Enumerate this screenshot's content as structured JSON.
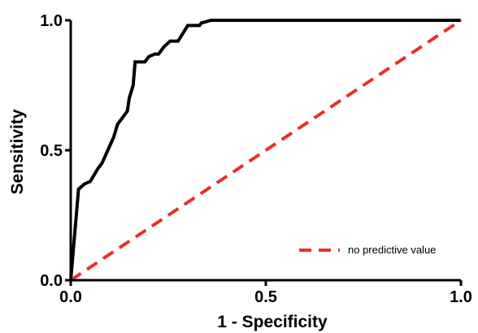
{
  "chart_data": {
    "type": "line",
    "title": "",
    "xlabel": "1 - Specificity",
    "ylabel": "Sensitivity",
    "xlim": [
      0,
      1
    ],
    "ylim": [
      0,
      1
    ],
    "x_ticks": [
      {
        "value": 0,
        "label": "0.0"
      },
      {
        "value": 0.5,
        "label": "0.5"
      },
      {
        "value": 1,
        "label": "1.0"
      }
    ],
    "y_ticks": [
      {
        "value": 0,
        "label": "0.0"
      },
      {
        "value": 0.5,
        "label": "0.5"
      },
      {
        "value": 1,
        "label": "1.0"
      }
    ],
    "grid": false,
    "legend_position": "bottom-right",
    "series": [
      {
        "name": "",
        "style": "solid",
        "color": "#000000",
        "x": [
          0,
          0.02,
          0.035,
          0.05,
          0.07,
          0.08,
          0.095,
          0.11,
          0.12,
          0.13,
          0.145,
          0.15,
          0.16,
          0.165,
          0.175,
          0.19,
          0.2,
          0.215,
          0.225,
          0.24,
          0.255,
          0.265,
          0.275,
          0.3,
          0.32,
          0.33,
          0.335,
          0.36,
          0.4,
          0.6,
          0.8,
          1.0
        ],
        "y": [
          0,
          0.35,
          0.37,
          0.38,
          0.43,
          0.45,
          0.5,
          0.55,
          0.6,
          0.62,
          0.65,
          0.7,
          0.75,
          0.84,
          0.84,
          0.84,
          0.86,
          0.87,
          0.87,
          0.9,
          0.92,
          0.92,
          0.92,
          0.98,
          0.98,
          0.98,
          0.99,
          1.0,
          1.0,
          1.0,
          1.0,
          1.0
        ]
      },
      {
        "name": "no predictive value",
        "style": "dashed",
        "color": "#e8302a",
        "x": [
          0,
          1
        ],
        "y": [
          0,
          1
        ]
      }
    ]
  }
}
